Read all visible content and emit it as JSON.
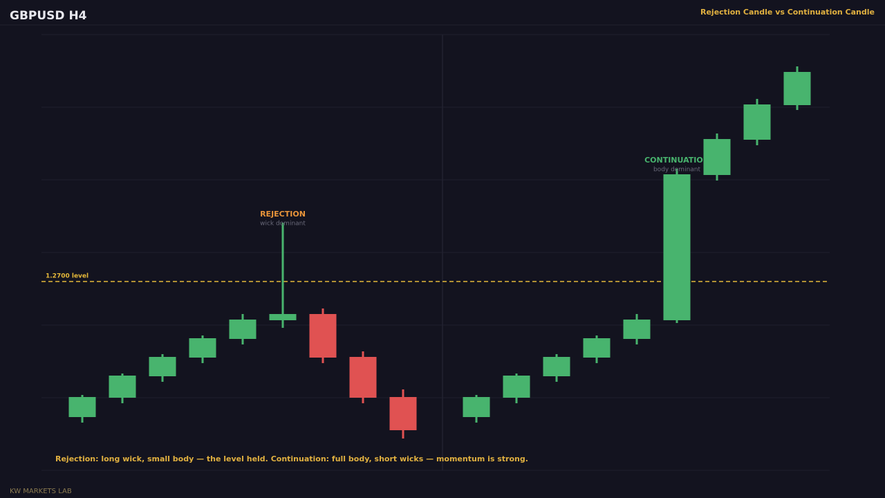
{
  "header": {
    "title": "GBPUSD  H4",
    "subtitle": "Rejection Candle vs Continuation Candle"
  },
  "chart_data": {
    "type": "candlestick",
    "ylim": [
      1.26454,
      1.27714
    ],
    "up_color": "#48b46e",
    "down_color": "#e05252",
    "level": {
      "value": 1.27,
      "label": "1.2700 level",
      "color": "#e6b93a"
    },
    "candles": [
      {
        "open": 1.26608,
        "high": 1.26672,
        "low": 1.26592,
        "close": 1.26666
      },
      {
        "open": 1.26664,
        "high": 1.26734,
        "low": 1.26648,
        "close": 1.26728
      },
      {
        "open": 1.26726,
        "high": 1.2679,
        "low": 1.2671,
        "close": 1.26782
      },
      {
        "open": 1.2678,
        "high": 1.26844,
        "low": 1.26764,
        "close": 1.26836
      },
      {
        "open": 1.26834,
        "high": 1.26906,
        "low": 1.26818,
        "close": 1.2689
      },
      {
        "open": 1.26888,
        "high": 1.2717,
        "low": 1.26866,
        "close": 1.26906,
        "label": "REJECTION",
        "sublabel": "wick dominant"
      },
      {
        "open": 1.26906,
        "high": 1.26922,
        "low": 1.26764,
        "close": 1.2678
      },
      {
        "open": 1.26782,
        "high": 1.26798,
        "low": 1.26648,
        "close": 1.26664
      },
      {
        "open": 1.26666,
        "high": 1.26688,
        "low": 1.26546,
        "close": 1.2657
      },
      {
        "open": 1.26608,
        "high": 1.26672,
        "low": 1.26592,
        "close": 1.26666
      },
      {
        "open": 1.26664,
        "high": 1.26734,
        "low": 1.26648,
        "close": 1.26728
      },
      {
        "open": 1.26726,
        "high": 1.2679,
        "low": 1.2671,
        "close": 1.26782
      },
      {
        "open": 1.2678,
        "high": 1.26844,
        "low": 1.26764,
        "close": 1.26836
      },
      {
        "open": 1.26834,
        "high": 1.26906,
        "low": 1.26818,
        "close": 1.2689
      },
      {
        "open": 1.26888,
        "high": 1.27326,
        "low": 1.2688,
        "close": 1.2731,
        "label": "CONTINUATION",
        "sublabel": "body dominant"
      },
      {
        "open": 1.27308,
        "high": 1.27428,
        "low": 1.27292,
        "close": 1.27412
      },
      {
        "open": 1.2741,
        "high": 1.27528,
        "low": 1.27394,
        "close": 1.27512
      },
      {
        "open": 1.2751,
        "high": 1.27622,
        "low": 1.27496,
        "close": 1.27606
      }
    ],
    "note": "Rejection: long wick, small body — the level held. Continuation: full body, short wicks — momentum is strong."
  },
  "footer": "KW MARKETS LAB"
}
